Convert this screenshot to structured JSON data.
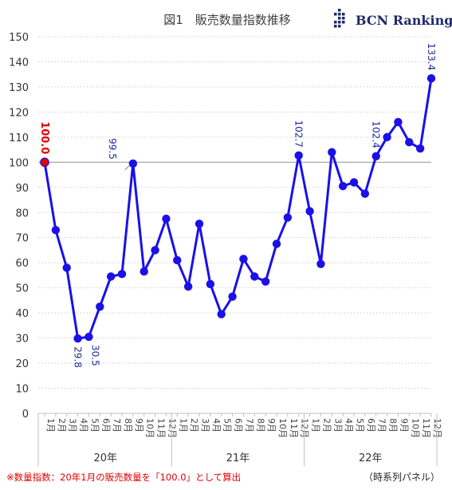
{
  "title": "図1　販売数量指数推移",
  "logo": {
    "text": "BCN Ranking"
  },
  "footnote": "※数量指数：20年1月の販売数量を「100.0」として算出",
  "panel_note": "（時系列パネル）",
  "colors": {
    "line": "#1a10e8",
    "marker": "#1a10e8",
    "first_marker": "#e00000",
    "grid": "#d9d9d9",
    "baseline": "#a0a0a0"
  },
  "chart_data": {
    "type": "line",
    "title": "図1　販売数量指数推移",
    "xlabel": "",
    "ylabel": "",
    "ylim": [
      0,
      150
    ],
    "yticks": [
      0,
      10,
      20,
      30,
      40,
      50,
      60,
      70,
      80,
      90,
      100,
      110,
      120,
      130,
      140,
      150
    ],
    "grid": true,
    "years": [
      {
        "label": "20年",
        "months": 12
      },
      {
        "label": "21年",
        "months": 12
      },
      {
        "label": "22年",
        "months": 12
      }
    ],
    "categories": [
      "1月",
      "2月",
      "3月",
      "4月",
      "5月",
      "6月",
      "7月",
      "8月",
      "9月",
      "10月",
      "11月",
      "12月",
      "1月",
      "2月",
      "3月",
      "4月",
      "5月",
      "6月",
      "7月",
      "8月",
      "9月",
      "10月",
      "11月",
      "12月",
      "1月",
      "2月",
      "3月",
      "4月",
      "5月",
      "6月",
      "7月",
      "8月",
      "9月",
      "10月",
      "11月",
      "12月"
    ],
    "series": [
      {
        "values": [
          100.0,
          73.0,
          58.0,
          29.8,
          30.5,
          42.5,
          54.5,
          55.5,
          99.5,
          56.5,
          65.0,
          77.5,
          61.0,
          50.5,
          75.5,
          51.5,
          39.5,
          46.5,
          61.5,
          54.5,
          52.5,
          67.5,
          78.0,
          102.7,
          80.5,
          59.5,
          104.0,
          90.5,
          92.0,
          87.5,
          102.4,
          110.0,
          116.0,
          108.0,
          105.5,
          133.4
        ]
      }
    ],
    "data_labels": [
      {
        "index": 0,
        "text": "100.0",
        "style": "red"
      },
      {
        "index": 3,
        "text": "29.8",
        "style": "blue"
      },
      {
        "index": 4,
        "text": "30.5",
        "style": "blue"
      },
      {
        "index": 8,
        "text": "99.5",
        "style": "blue"
      },
      {
        "index": 23,
        "text": "102.7",
        "style": "blue"
      },
      {
        "index": 30,
        "text": "102.4",
        "style": "blue"
      },
      {
        "index": 35,
        "text": "133.4",
        "style": "blue"
      }
    ],
    "reference_line": 100
  }
}
